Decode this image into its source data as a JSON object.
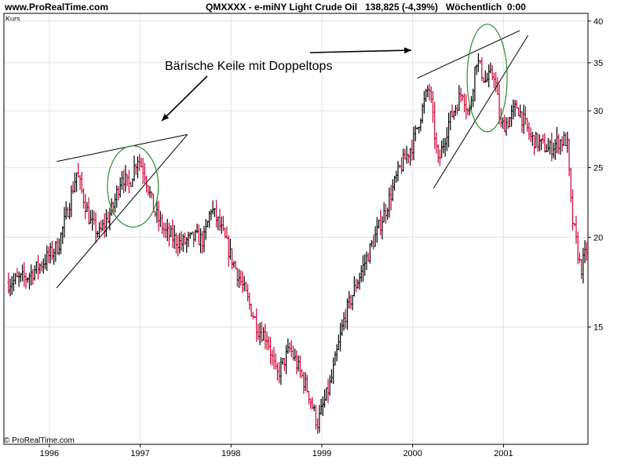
{
  "header": {
    "site": "www.ProRealTime.com",
    "symbol_line": "QMXXXX - e-miNY Light Crude Oil   138,825 (-4,39%)   Wöchentlich  0:00"
  },
  "footer": {
    "copyright": "© ProRealTime.com"
  },
  "colors": {
    "up": "#000000",
    "down": "#cc0033",
    "grid": "#e2e2e2",
    "trend": "#000000",
    "circle": "#2e8b2e"
  },
  "chart_data": {
    "type": "ohlc",
    "title": "QMXXXX - e-miNY Light Crude Oil",
    "ylabel": "Kurs",
    "scale": "log",
    "ylim": [
      10.3,
      41
    ],
    "xlim": [
      1995.5,
      2001.93
    ],
    "x_ticks": [
      "1996",
      "1997",
      "1998",
      "1999",
      "2000",
      "2001"
    ],
    "y_ticks": [
      "15",
      "20",
      "25",
      "30",
      "35",
      "40"
    ],
    "annotation": "Bärische Keile mit Doppeltops",
    "price_path": [
      [
        1995.55,
        17.3
      ],
      [
        1995.75,
        17.6
      ],
      [
        1995.9,
        18.3
      ],
      [
        1996.1,
        19.5
      ],
      [
        1996.2,
        21.8
      ],
      [
        1996.3,
        24.6
      ],
      [
        1996.45,
        21.0
      ],
      [
        1996.55,
        20.2
      ],
      [
        1996.7,
        22.0
      ],
      [
        1996.8,
        24.5
      ],
      [
        1996.87,
        23.5
      ],
      [
        1996.97,
        25.9
      ],
      [
        1997.05,
        24.6
      ],
      [
        1997.15,
        21.8
      ],
      [
        1997.28,
        20.3
      ],
      [
        1997.45,
        19.6
      ],
      [
        1997.6,
        20.0
      ],
      [
        1997.7,
        19.8
      ],
      [
        1997.78,
        22.0
      ],
      [
        1997.88,
        20.7
      ],
      [
        1998.0,
        18.8
      ],
      [
        1998.15,
        16.8
      ],
      [
        1998.3,
        14.9
      ],
      [
        1998.4,
        14.5
      ],
      [
        1998.5,
        12.8
      ],
      [
        1998.65,
        14.0
      ],
      [
        1998.85,
        12.2
      ],
      [
        1998.95,
        11.0
      ],
      [
        1999.1,
        12.6
      ],
      [
        1999.25,
        15.5
      ],
      [
        1999.4,
        17.5
      ],
      [
        1999.55,
        19.5
      ],
      [
        1999.7,
        21.8
      ],
      [
        1999.85,
        24.8
      ],
      [
        2000.0,
        27.0
      ],
      [
        2000.1,
        30.0
      ],
      [
        2000.18,
        32.5
      ],
      [
        2000.28,
        25.3
      ],
      [
        2000.4,
        29.0
      ],
      [
        2000.55,
        32.0
      ],
      [
        2000.62,
        29.5
      ],
      [
        2000.7,
        35.5
      ],
      [
        2000.8,
        33.0
      ],
      [
        2000.9,
        33.8
      ],
      [
        2000.97,
        28.5
      ],
      [
        2001.05,
        29.0
      ],
      [
        2001.15,
        30.5
      ],
      [
        2001.3,
        27.5
      ],
      [
        2001.5,
        26.5
      ],
      [
        2001.6,
        27.2
      ],
      [
        2001.7,
        27.3
      ],
      [
        2001.75,
        21.5
      ],
      [
        2001.85,
        18.0
      ],
      [
        2001.93,
        19.5
      ]
    ],
    "series": [
      {
        "name": "",
        "kind": "trendline",
        "points": [
          [
            1996.08,
            25.5
          ],
          [
            1997.52,
            27.8
          ]
        ]
      },
      {
        "name": "",
        "kind": "trendline",
        "points": [
          [
            1996.08,
            17.0
          ],
          [
            1997.52,
            27.8
          ]
        ]
      },
      {
        "name": "",
        "kind": "trendline",
        "points": [
          [
            2000.05,
            33.3
          ],
          [
            2001.18,
            38.8
          ]
        ]
      },
      {
        "name": "",
        "kind": "trendline",
        "points": [
          [
            2000.23,
            23.4
          ],
          [
            2001.27,
            38.2
          ]
        ]
      }
    ],
    "highlights": [
      {
        "shape": "ellipse",
        "center": [
          1996.92,
          24.6
        ],
        "radius_x_years": 0.28,
        "radius_y_frac": [
          0.84,
          1.09
        ]
      },
      {
        "shape": "ellipse",
        "center": [
          2000.82,
          33.0
        ],
        "radius_x_years": 0.22,
        "radius_y_frac": [
          0.85,
          1.2
        ]
      }
    ]
  }
}
